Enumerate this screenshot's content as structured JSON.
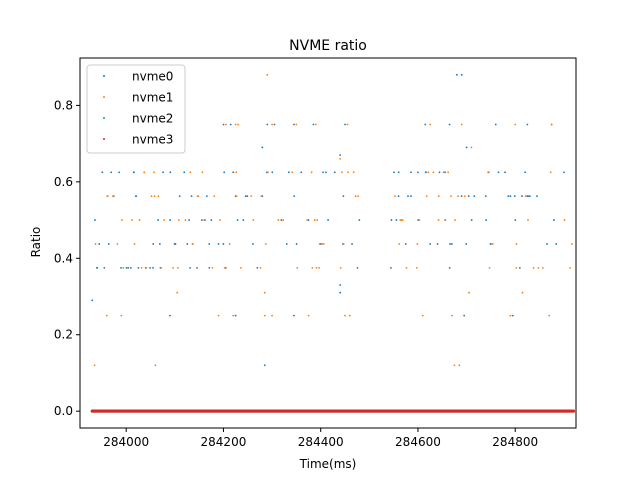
{
  "chart_data": {
    "type": "scatter",
    "title": "NVME ratio",
    "xlabel": "Time(ms)",
    "ylabel": "Ratio",
    "xlim": [
      283905,
      284925
    ],
    "ylim": [
      -0.044,
      0.924
    ],
    "xticks": [
      284000,
      284200,
      284400,
      284600,
      284800
    ],
    "xtick_labels": [
      "284000",
      "284200",
      "284400",
      "284600",
      "284800"
    ],
    "yticks": [
      0.0,
      0.2,
      0.4,
      0.6,
      0.8
    ],
    "ytick_labels": [
      "0.0",
      "0.2",
      "0.4",
      "0.6",
      "0.8"
    ],
    "grid": false,
    "legend_position": "top-left",
    "x_start": 283930,
    "x_end": 284920,
    "levels": [
      0.375,
      0.4375,
      0.5,
      0.5625,
      0.625
    ],
    "series": [
      {
        "name": "nvme0",
        "color": "#1f77b4",
        "extra_points": [
          [
            283930,
            0.29
          ],
          [
            284285,
            0.12
          ],
          [
            284440,
            0.33
          ],
          [
            284440,
            0.31
          ],
          [
            284680,
            0.88
          ],
          [
            284690,
            0.88
          ],
          [
            284200,
            0.75
          ],
          [
            284215,
            0.75
          ],
          [
            284290,
            0.75
          ],
          [
            284305,
            0.75
          ],
          [
            284345,
            0.75
          ],
          [
            284385,
            0.75
          ],
          [
            284450,
            0.75
          ],
          [
            284615,
            0.75
          ],
          [
            284665,
            0.75
          ],
          [
            284760,
            0.75
          ],
          [
            284825,
            0.75
          ],
          [
            284875,
            0.75
          ],
          [
            284280,
            0.69
          ],
          [
            284440,
            0.67
          ],
          [
            284700,
            0.69
          ],
          [
            284090,
            0.25
          ],
          [
            284225,
            0.25
          ],
          [
            284345,
            0.25
          ],
          [
            284695,
            0.25
          ],
          [
            284795,
            0.25
          ]
        ]
      },
      {
        "name": "nvme1",
        "color": "#ff7f0e",
        "extra_points": [
          [
            283935,
            0.12
          ],
          [
            284060,
            0.12
          ],
          [
            284675,
            0.12
          ],
          [
            284685,
            0.12
          ],
          [
            284290,
            0.88
          ],
          [
            284205,
            0.75
          ],
          [
            284225,
            0.75
          ],
          [
            284230,
            0.75
          ],
          [
            284300,
            0.75
          ],
          [
            284350,
            0.75
          ],
          [
            284390,
            0.75
          ],
          [
            284455,
            0.75
          ],
          [
            284625,
            0.75
          ],
          [
            284690,
            0.75
          ],
          [
            284800,
            0.75
          ],
          [
            284875,
            0.75
          ],
          [
            284440,
            0.66
          ],
          [
            284710,
            0.69
          ],
          [
            283960,
            0.25
          ],
          [
            283990,
            0.25
          ],
          [
            284190,
            0.25
          ],
          [
            284220,
            0.25
          ],
          [
            284285,
            0.25
          ],
          [
            284300,
            0.25
          ],
          [
            284375,
            0.25
          ],
          [
            284450,
            0.25
          ],
          [
            284460,
            0.25
          ],
          [
            284610,
            0.25
          ],
          [
            284670,
            0.25
          ],
          [
            284790,
            0.25
          ],
          [
            284870,
            0.25
          ],
          [
            284105,
            0.31
          ],
          [
            284285,
            0.31
          ],
          [
            284705,
            0.31
          ],
          [
            284815,
            0.31
          ]
        ]
      },
      {
        "name": "nvme2",
        "color": "#2ca02c",
        "value": 0.0
      },
      {
        "name": "nvme3",
        "color": "#d62728",
        "value": 0.0
      }
    ]
  }
}
